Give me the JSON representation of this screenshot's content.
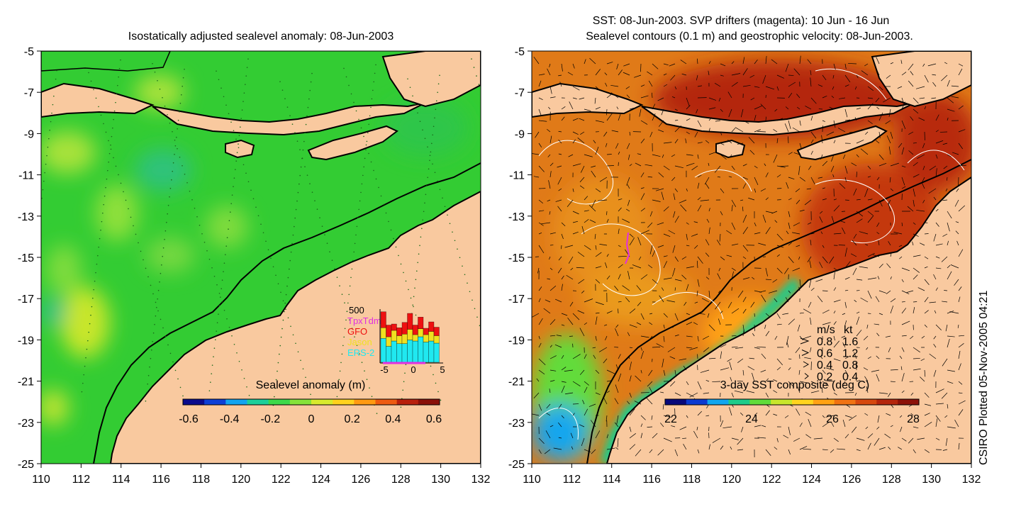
{
  "left_panel": {
    "title": "Isostatically adjusted sealevel anomaly: 08-Jun-2003",
    "colorbar": {
      "label": "Sealevel anomaly (m)",
      "ticks": [
        "-0.6",
        "-0.4",
        "-0.2",
        "0",
        "0.2",
        "0.4",
        "0.6"
      ],
      "colors": [
        "#0a0a8c",
        "#0d3fd6",
        "#12a4f0",
        "#1dcf9a",
        "#3ed94a",
        "#86e23a",
        "#d8ea2e",
        "#ffd21e",
        "#ff9a12",
        "#ee5a10",
        "#b8200c",
        "#8a1008"
      ]
    },
    "inset": {
      "max_label": "500",
      "legend": [
        {
          "name": "TpxTdm",
          "color": "#e030e0"
        },
        {
          "name": "GFO",
          "color": "#ee1010"
        },
        {
          "name": "Jason",
          "color": "#f0e020"
        },
        {
          "name": "ERS-2",
          "color": "#20e8f0"
        }
      ],
      "xticks": [
        "-5",
        "0",
        "5"
      ],
      "bars": [
        {
          "ers2": 0.45,
          "jason": 0.2,
          "gfo": 0.3
        },
        {
          "ers2": 0.3,
          "jason": 0.18,
          "gfo": 0.22
        },
        {
          "ers2": 0.4,
          "jason": 0.2,
          "gfo": 0.12
        },
        {
          "ers2": 0.35,
          "jason": 0.15,
          "gfo": 0.15
        },
        {
          "ers2": 0.35,
          "jason": 0.18,
          "gfo": 0.22
        },
        {
          "ers2": 0.42,
          "jason": 0.2,
          "gfo": 0.3
        },
        {
          "ers2": 0.4,
          "jason": 0.12,
          "gfo": 0.18
        },
        {
          "ers2": 0.48,
          "jason": 0.15,
          "gfo": 0.22
        },
        {
          "ers2": 0.38,
          "jason": 0.14,
          "gfo": 0.12
        },
        {
          "ers2": 0.4,
          "jason": 0.18,
          "gfo": 0.18
        },
        {
          "ers2": 0.36,
          "jason": 0.14,
          "gfo": 0.16
        }
      ]
    }
  },
  "right_panel": {
    "title_line1": "SST: 08-Jun-2003. SVP drifters (magenta): 10 Jun - 16 Jun",
    "title_line2": "Sealevel contours (0.1 m) and geostrophic velocity: 08-Jun-2003.",
    "colorbar": {
      "label": "3-day SST composite (deg C)",
      "ticks": [
        "22",
        "24",
        "26",
        "28"
      ],
      "colors": [
        "#08087a",
        "#0c3ad0",
        "#12a6ee",
        "#1ecc8a",
        "#62dc3a",
        "#c8e62c",
        "#ffd41e",
        "#ffa214",
        "#f07212",
        "#d6480e",
        "#b4260c",
        "#8c1208"
      ]
    },
    "speed_legend": {
      "header_ms": "m/s",
      "header_kt": "kt",
      "rows": [
        {
          "ms": "0.8",
          "kt": "1.6"
        },
        {
          "ms": "0.6",
          "kt": "1.2"
        },
        {
          "ms": "0.4",
          "kt": "0.8"
        },
        {
          "ms": "0.2",
          "kt": "0.4"
        }
      ]
    },
    "credit": "CSIRO Plotted 05-Nov-2005 04:21"
  },
  "axes": {
    "x_ticks": [
      "110",
      "112",
      "114",
      "116",
      "118",
      "120",
      "122",
      "124",
      "126",
      "128",
      "130",
      "132"
    ],
    "y_ticks": [
      "-5",
      "-7",
      "-9",
      "-11",
      "-13",
      "-15",
      "-17",
      "-19",
      "-21",
      "-23",
      "-25"
    ],
    "xlim": [
      110,
      132
    ],
    "ylim": [
      -25,
      -5
    ]
  },
  "colors": {
    "land": "#f9c99f",
    "coast": "#000000",
    "sla_ocean": "#33cc33",
    "sst_ocean": "#e07a18"
  }
}
